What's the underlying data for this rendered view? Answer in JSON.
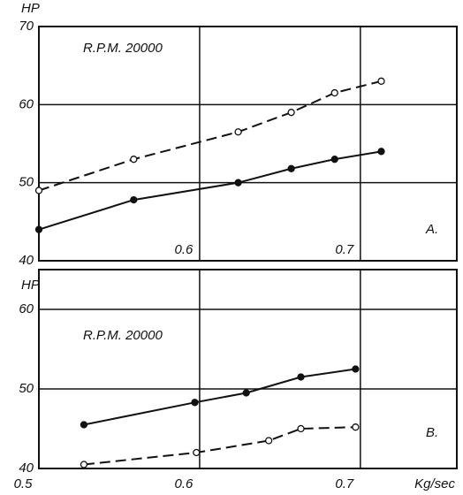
{
  "chart_data": [
    {
      "type": "line",
      "ylabel": "HP",
      "annotation": "R.P.M. 20000",
      "panel_label": "A.",
      "xlim": [
        0.5,
        0.76
      ],
      "xticks": [
        0.6,
        0.7
      ],
      "ylim": [
        40,
        70
      ],
      "yticks": [
        40,
        50,
        60,
        70
      ],
      "grid": true,
      "series": [
        {
          "color": "#111",
          "linestyle": "dashed",
          "marker": "open",
          "x": [
            0.5,
            0.559,
            0.624,
            0.657,
            0.684,
            0.713
          ],
          "values": [
            49,
            53,
            56.5,
            59,
            61.5,
            63
          ]
        },
        {
          "color": "#111",
          "linestyle": "solid",
          "marker": "filled",
          "x": [
            0.5,
            0.559,
            0.624,
            0.657,
            0.684,
            0.713
          ],
          "values": [
            44,
            47.8,
            50,
            51.8,
            53,
            54
          ]
        }
      ]
    },
    {
      "type": "line",
      "ylabel": "HP",
      "xlabel": "Kg/sec",
      "annotation": "R.P.M. 20000",
      "panel_label": "B.",
      "xlim": [
        0.5,
        0.76
      ],
      "xticks": [
        0.5,
        0.6,
        0.7
      ],
      "ylim": [
        40,
        65
      ],
      "yticks": [
        40,
        50,
        60
      ],
      "grid": true,
      "series": [
        {
          "color": "#111",
          "linestyle": "solid",
          "marker": "filled",
          "x": [
            0.528,
            0.597,
            0.629,
            0.663,
            0.697
          ],
          "values": [
            45.5,
            48.3,
            49.5,
            51.5,
            52.5
          ]
        },
        {
          "color": "#111",
          "linestyle": "dashed",
          "marker": "open",
          "x": [
            0.528,
            0.598,
            0.643,
            0.663,
            0.697
          ],
          "values": [
            40.5,
            42,
            43.5,
            45,
            45.2
          ]
        }
      ]
    }
  ]
}
